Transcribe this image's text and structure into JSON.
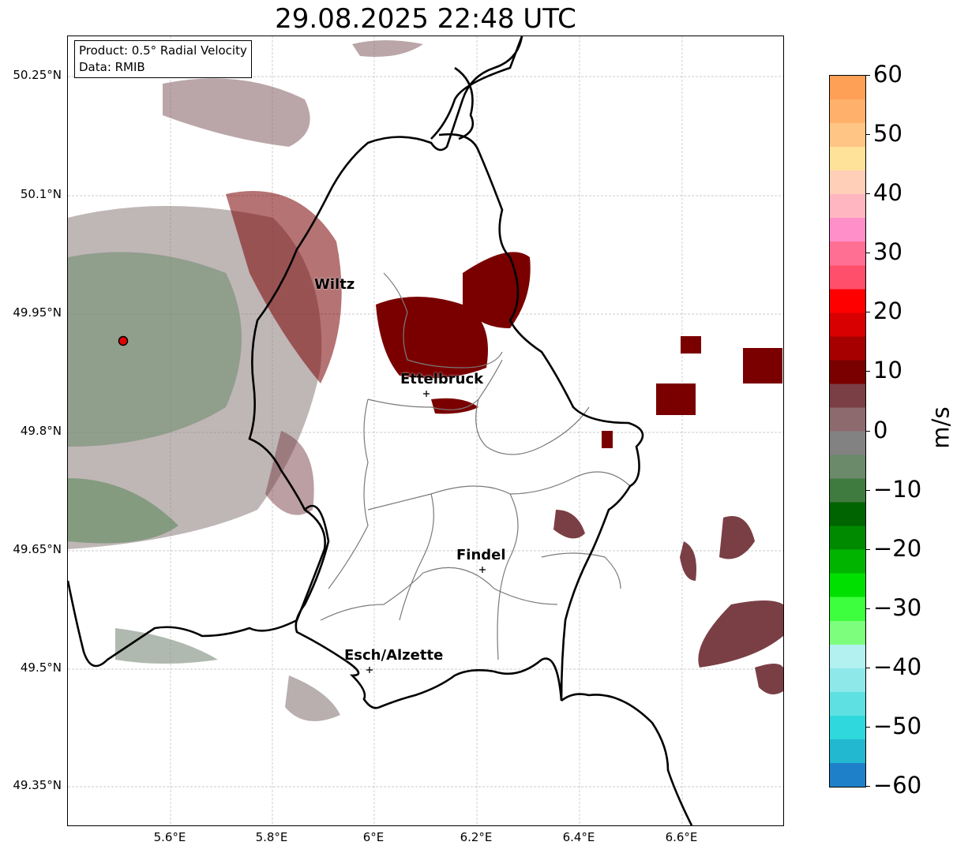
{
  "title": "29.08.2025 22:48 UTC",
  "info": {
    "product": "Product: 0.5° Radial Velocity",
    "data": "Data: RMIB"
  },
  "lat_labels": [
    "50.25°N",
    "50.1°N",
    "49.95°N",
    "49.8°N",
    "49.65°N",
    "49.5°N",
    "49.35°N"
  ],
  "lon_labels": [
    "5.6°E",
    "5.8°E",
    "6°E",
    "6.2°E",
    "6.4°E",
    "6.6°E"
  ],
  "places": {
    "wiltz": "Wiltz",
    "ettelbruck": "Ettelbruck",
    "findel": "Findel",
    "esch": "Esch/Alzette"
  },
  "colorbar": {
    "unit": "m/s",
    "ticks": [
      "60",
      "50",
      "40",
      "30",
      "20",
      "10",
      "0",
      "−10",
      "−20",
      "−30",
      "−40",
      "−50",
      "−60"
    ],
    "colors_top_to_bottom": [
      "#ffa057",
      "#ffb16b",
      "#ffc585",
      "#ffe299",
      "#ffcfb8",
      "#ffb6c1",
      "#ff8fc9",
      "#ff6f93",
      "#ff4f6b",
      "#ff0000",
      "#d80000",
      "#a60000",
      "#7a0000",
      "#7a3f45",
      "#8c6a6e",
      "#828282",
      "#6a8a6a",
      "#3f7a3f",
      "#006400",
      "#008a00",
      "#00b400",
      "#00e000",
      "#3dff3d",
      "#7dff7d",
      "#b3f0f0",
      "#8ee8ea",
      "#5ee0e2",
      "#2ed8dc",
      "#22b8d0",
      "#1e80c8"
    ]
  }
}
